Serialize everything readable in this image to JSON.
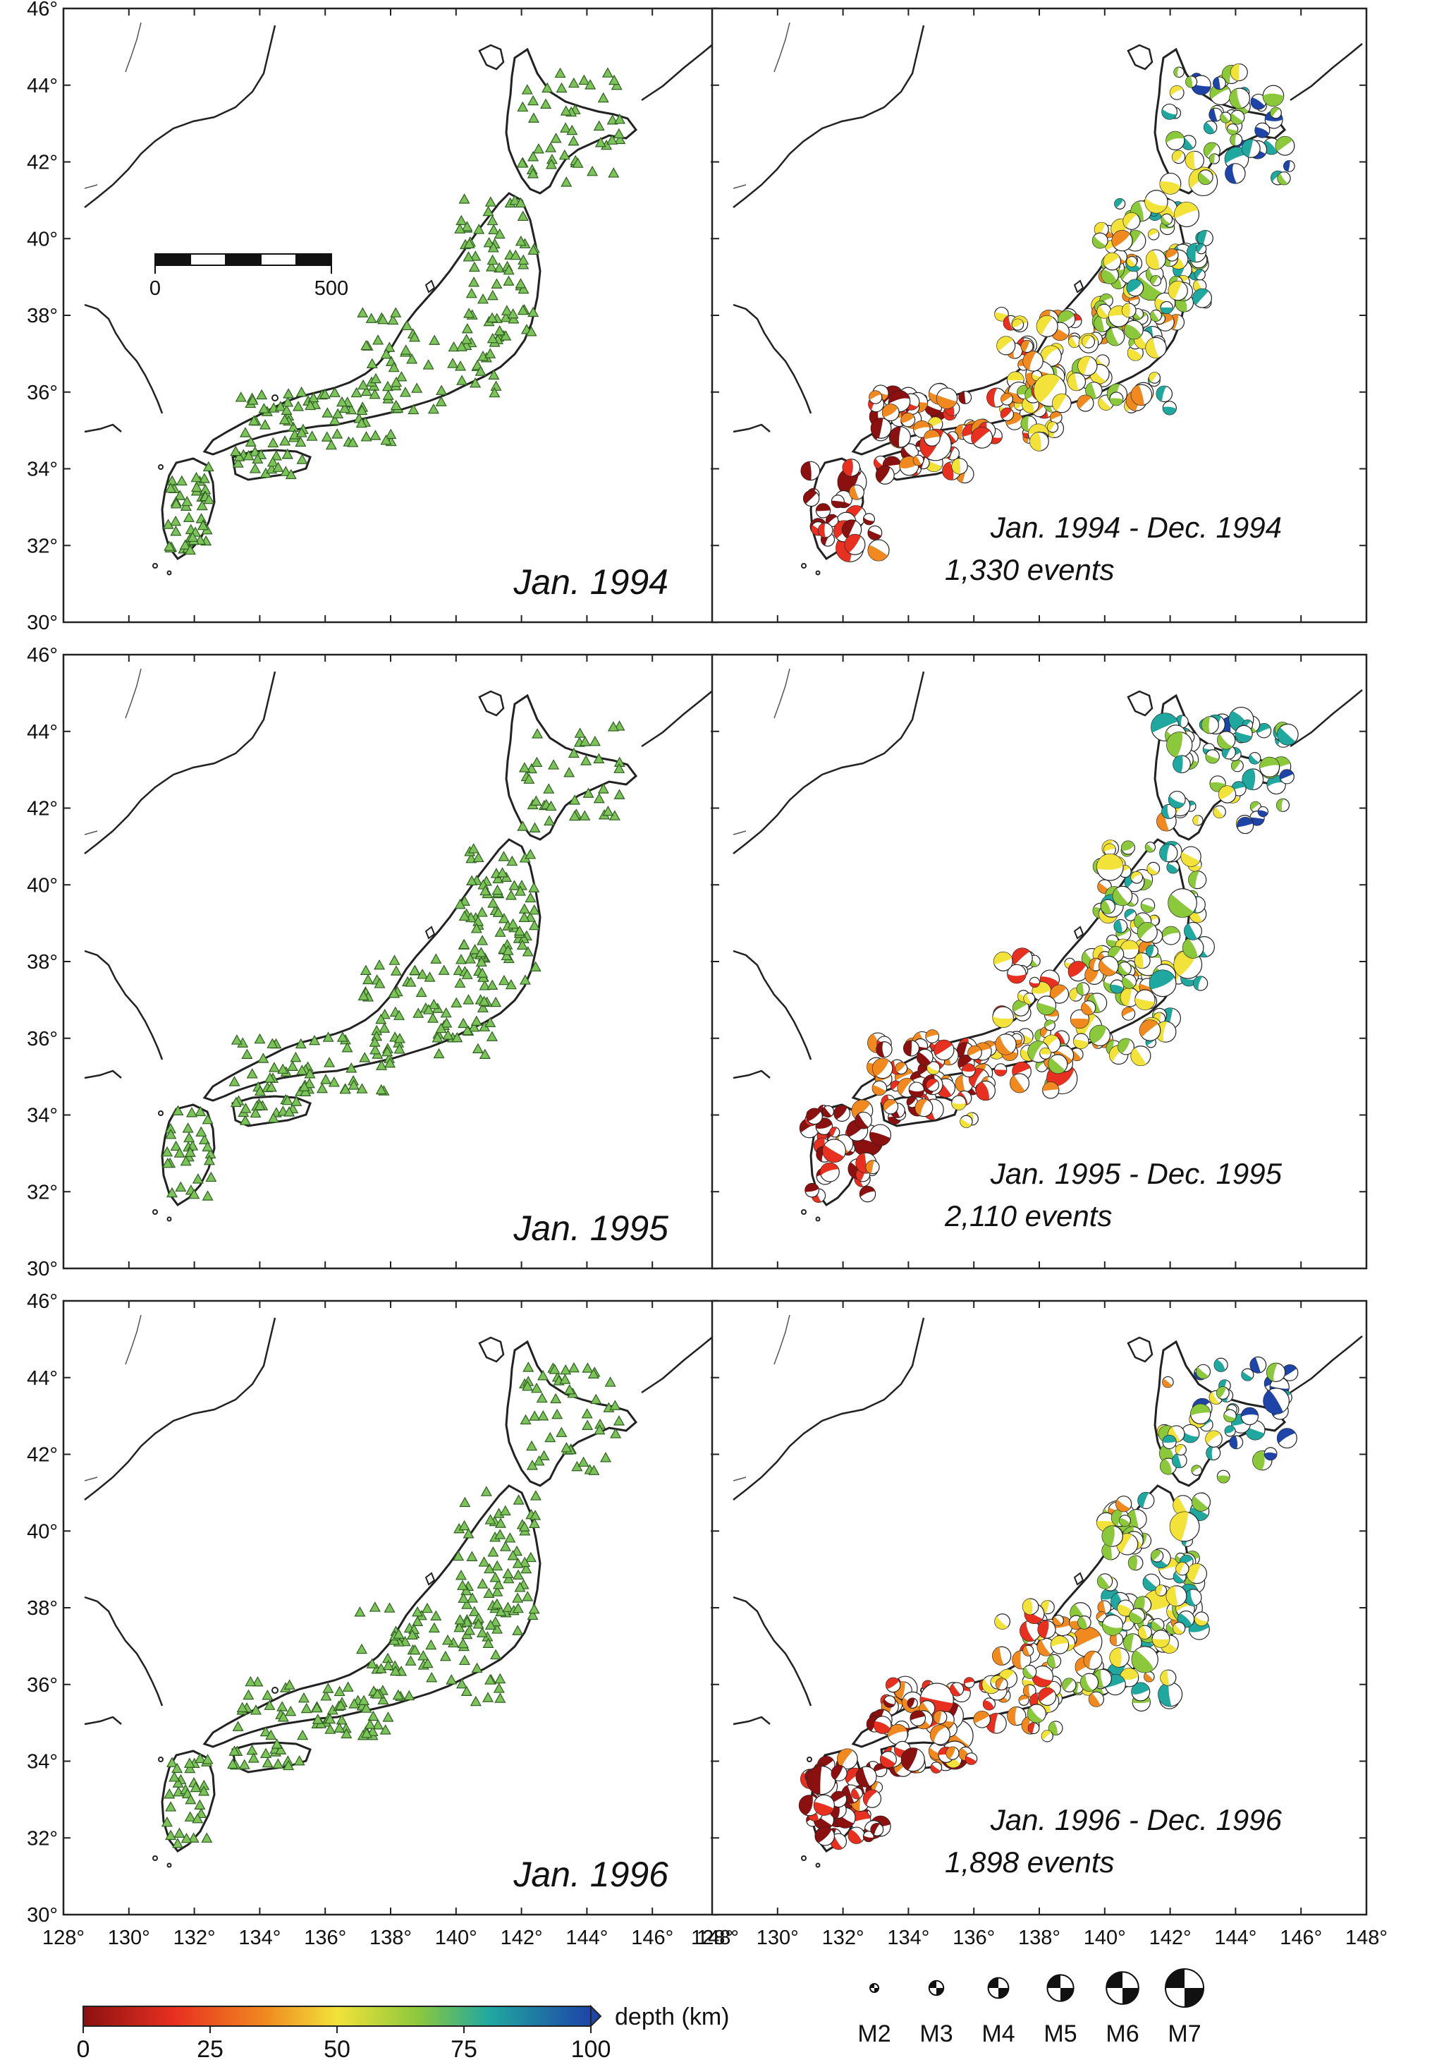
{
  "lat_ticks": [
    "46°",
    "44°",
    "42°",
    "40°",
    "38°",
    "36°",
    "34°",
    "32°",
    "30°"
  ],
  "lon_ticks": [
    "128°",
    "130°",
    "132°",
    "134°",
    "136°",
    "138°",
    "140°",
    "142°",
    "144°",
    "146°",
    "148°"
  ],
  "rows": [
    {
      "station_caption": "Jan. 1994",
      "event_period": "Jan. 1994 - Dec. 1994",
      "event_count": "1,330 events"
    },
    {
      "station_caption": "Jan. 1995",
      "event_period": "Jan. 1995 - Dec. 1995",
      "event_count": "2,110 events"
    },
    {
      "station_caption": "Jan. 1996",
      "event_period": "Jan. 1996 - Dec. 1996",
      "event_count": "1,898 events"
    }
  ],
  "scale_bar": {
    "start_label": "0",
    "end_label": "500"
  },
  "depth_colorbar": {
    "label": "depth (km)",
    "ticks": [
      "0",
      "25",
      "50",
      "75",
      "100"
    ],
    "colors": [
      "#8b1010",
      "#e83020",
      "#f08a20",
      "#f2e23a",
      "#8cc83c",
      "#20a8a0",
      "#1e44a8"
    ]
  },
  "magnitude_legend": [
    "M2",
    "M3",
    "M4",
    "M5",
    "M6",
    "M7"
  ],
  "colors": {
    "station_fill": "#7cc35a",
    "station_stroke": "#2f5e22",
    "coastline": "#222222",
    "border": "#555555"
  }
}
